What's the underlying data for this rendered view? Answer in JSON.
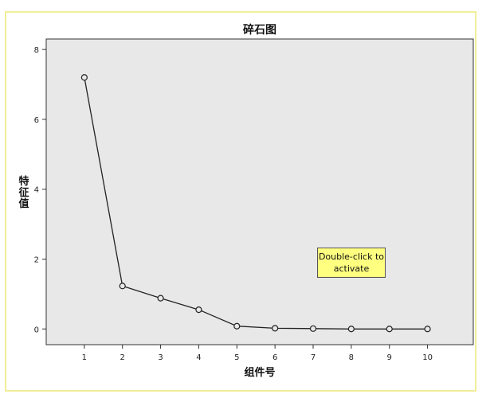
{
  "chart_data": {
    "type": "line",
    "title": "碎石图",
    "xlabel": "组件号",
    "ylabel": "特征值",
    "x": [
      1,
      2,
      3,
      4,
      5,
      6,
      7,
      8,
      9,
      10
    ],
    "series": [
      {
        "values": [
          7.2,
          1.23,
          0.88,
          0.55,
          0.08,
          0.02,
          0.01,
          0.0,
          0.0,
          0.0
        ]
      }
    ],
    "xlim": [
      0.0,
      11.2
    ],
    "ylim": [
      -0.45,
      8.3
    ],
    "yticks": [
      0,
      2,
      4,
      6,
      8
    ],
    "xticks": [
      1,
      2,
      3,
      4,
      5,
      6,
      7,
      8,
      9,
      10
    ],
    "marker": "open-circle",
    "line_color": "#222222",
    "plot_background": "#e8e8e8",
    "grid": false,
    "legend": "none"
  },
  "overlay": {
    "activate_hint_line1": "Double-click to",
    "activate_hint_line2": "activate"
  }
}
